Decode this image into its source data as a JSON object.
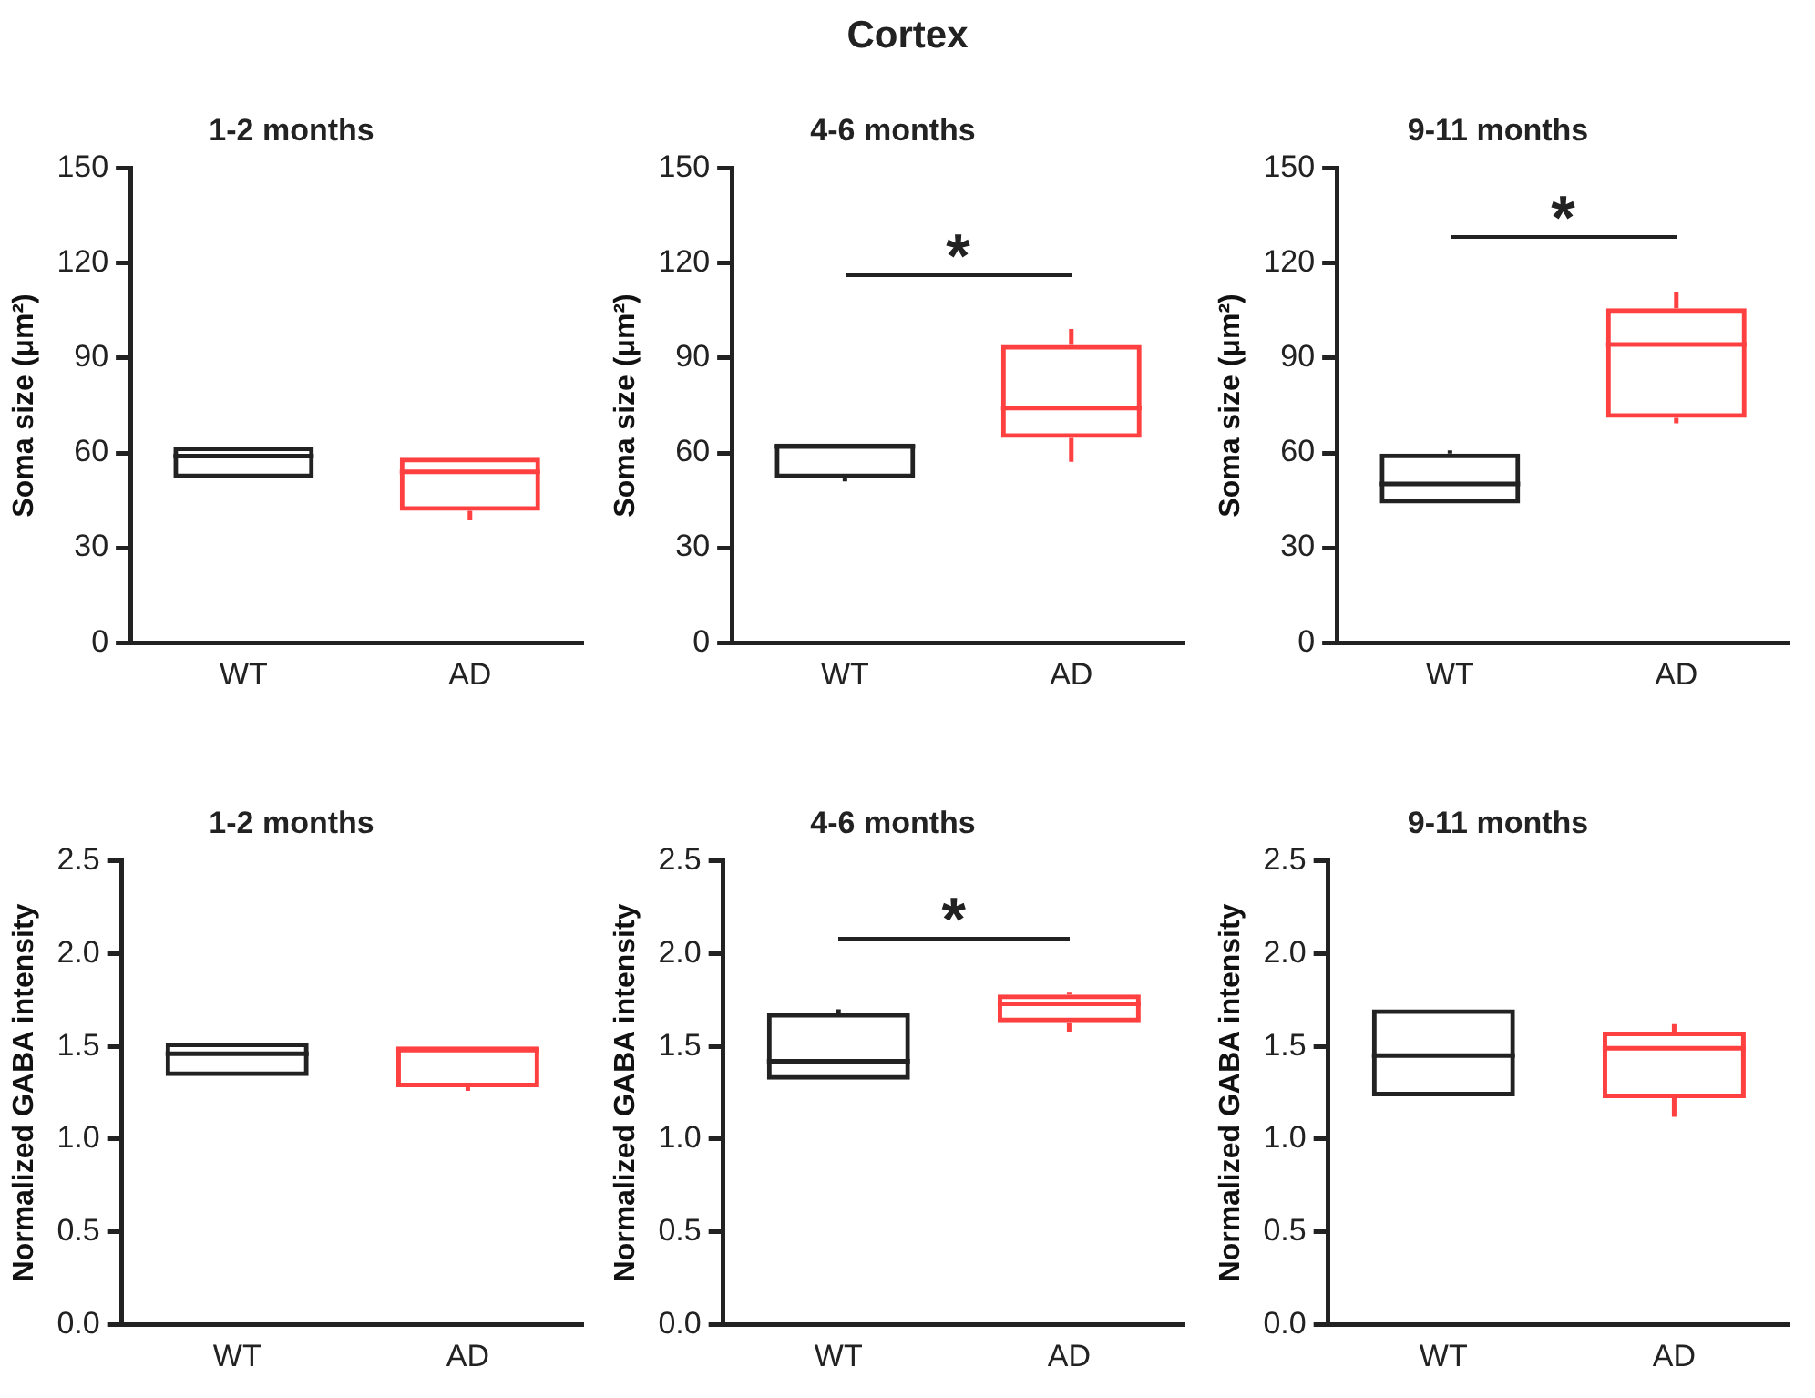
{
  "chart_data": [
    {
      "type": "box",
      "title": "1-2 months",
      "ylabel": "Soma size (μm²)",
      "categories": [
        "WT",
        "AD"
      ],
      "colors": [
        "#222222",
        "#ff4040"
      ],
      "ylim": [
        0,
        150
      ],
      "yticks": [
        0,
        30,
        60,
        90,
        120,
        150
      ],
      "annotations": [
        "Cortex"
      ],
      "boxes": [
        {
          "low": 52,
          "q1": 52,
          "median": 59,
          "q3": 62,
          "high": 62
        },
        {
          "low": 38.7,
          "q1": 41.7,
          "median": 54,
          "q3": 58.5,
          "high": 58.5
        }
      ]
    },
    {
      "type": "box",
      "title": "4-6 months",
      "ylabel": "Soma size (μm²)",
      "categories": [
        "WT",
        "AD"
      ],
      "colors": [
        "#222222",
        "#ff4040"
      ],
      "ylim": [
        0,
        150
      ],
      "yticks": [
        0,
        30,
        60,
        90,
        120,
        150
      ],
      "annotations": [
        "*"
      ],
      "boxes": [
        {
          "low": 51,
          "q1": 52,
          "median": 62,
          "q3": 63,
          "high": 63
        },
        {
          "low": 57.2,
          "q1": 64.8,
          "median": 74.2,
          "q3": 94.2,
          "high": 99.2
        }
      ]
    },
    {
      "type": "box",
      "title": "9-11 months",
      "ylabel": "Soma size (μm²)",
      "categories": [
        "WT",
        "AD"
      ],
      "colors": [
        "#222222",
        "#ff4040"
      ],
      "ylim": [
        0,
        150
      ],
      "yticks": [
        0,
        30,
        60,
        90,
        120,
        150
      ],
      "annotations": [
        "*"
      ],
      "boxes": [
        {
          "low": 44,
          "q1": 44,
          "median": 50.2,
          "q3": 59.8,
          "high": 60.8
        },
        {
          "low": 69.4,
          "q1": 71.1,
          "median": 94.3,
          "q3": 105.8,
          "high": 111
        }
      ]
    },
    {
      "type": "box",
      "title": "1-2 months",
      "ylabel": "Normalized GABA intensity",
      "categories": [
        "WT",
        "AD"
      ],
      "colors": [
        "#222222",
        "#ff4040"
      ],
      "ylim": [
        0,
        2.5
      ],
      "yticks": [
        {
          "value": 0,
          "label": "0.0"
        },
        0.5,
        {
          "value": 1,
          "label": "1.0"
        },
        1.5,
        {
          "value": 2,
          "label": "2.0"
        },
        2.5
      ],
      "boxes": [
        {
          "low": 1.34,
          "q1": 1.34,
          "median": 1.46,
          "q3": 1.52,
          "high": 1.52
        },
        {
          "low": 1.26,
          "q1": 1.28,
          "median": 1.48,
          "q3": 1.5,
          "high": 1.5
        }
      ]
    },
    {
      "type": "box",
      "title": "4-6 months",
      "ylabel": "Normalized GABA intensity",
      "categories": [
        "WT",
        "AD"
      ],
      "colors": [
        "#222222",
        "#ff4040"
      ],
      "ylim": [
        0,
        2.5
      ],
      "yticks": [
        {
          "value": 0,
          "label": "0.0"
        },
        0.5,
        {
          "value": 1,
          "label": "1.0"
        },
        1.5,
        {
          "value": 2,
          "label": "2.0"
        },
        2.5
      ],
      "annotations": [
        "*"
      ],
      "boxes": [
        {
          "low": 1.32,
          "q1": 1.32,
          "median": 1.42,
          "q3": 1.68,
          "high": 1.7
        },
        {
          "low": 1.58,
          "q1": 1.63,
          "median": 1.73,
          "q3": 1.78,
          "high": 1.79
        }
      ]
    },
    {
      "type": "box",
      "title": "9-11 months",
      "ylabel": "Normalized GABA intensity",
      "categories": [
        "WT",
        "AD"
      ],
      "colors": [
        "#222222",
        "#ff4040"
      ],
      "ylim": [
        0,
        2.5
      ],
      "yticks": [
        {
          "value": 0,
          "label": "0.0"
        },
        0.5,
        {
          "value": 1,
          "label": "1.0"
        },
        1.5,
        {
          "value": 2,
          "label": "2.0"
        },
        2.5
      ],
      "boxes": [
        {
          "low": 1.23,
          "q1": 1.23,
          "median": 1.45,
          "q3": 1.7,
          "high": 1.7
        },
        {
          "low": 1.12,
          "q1": 1.22,
          "median": 1.49,
          "q3": 1.58,
          "high": 1.62
        }
      ]
    }
  ]
}
